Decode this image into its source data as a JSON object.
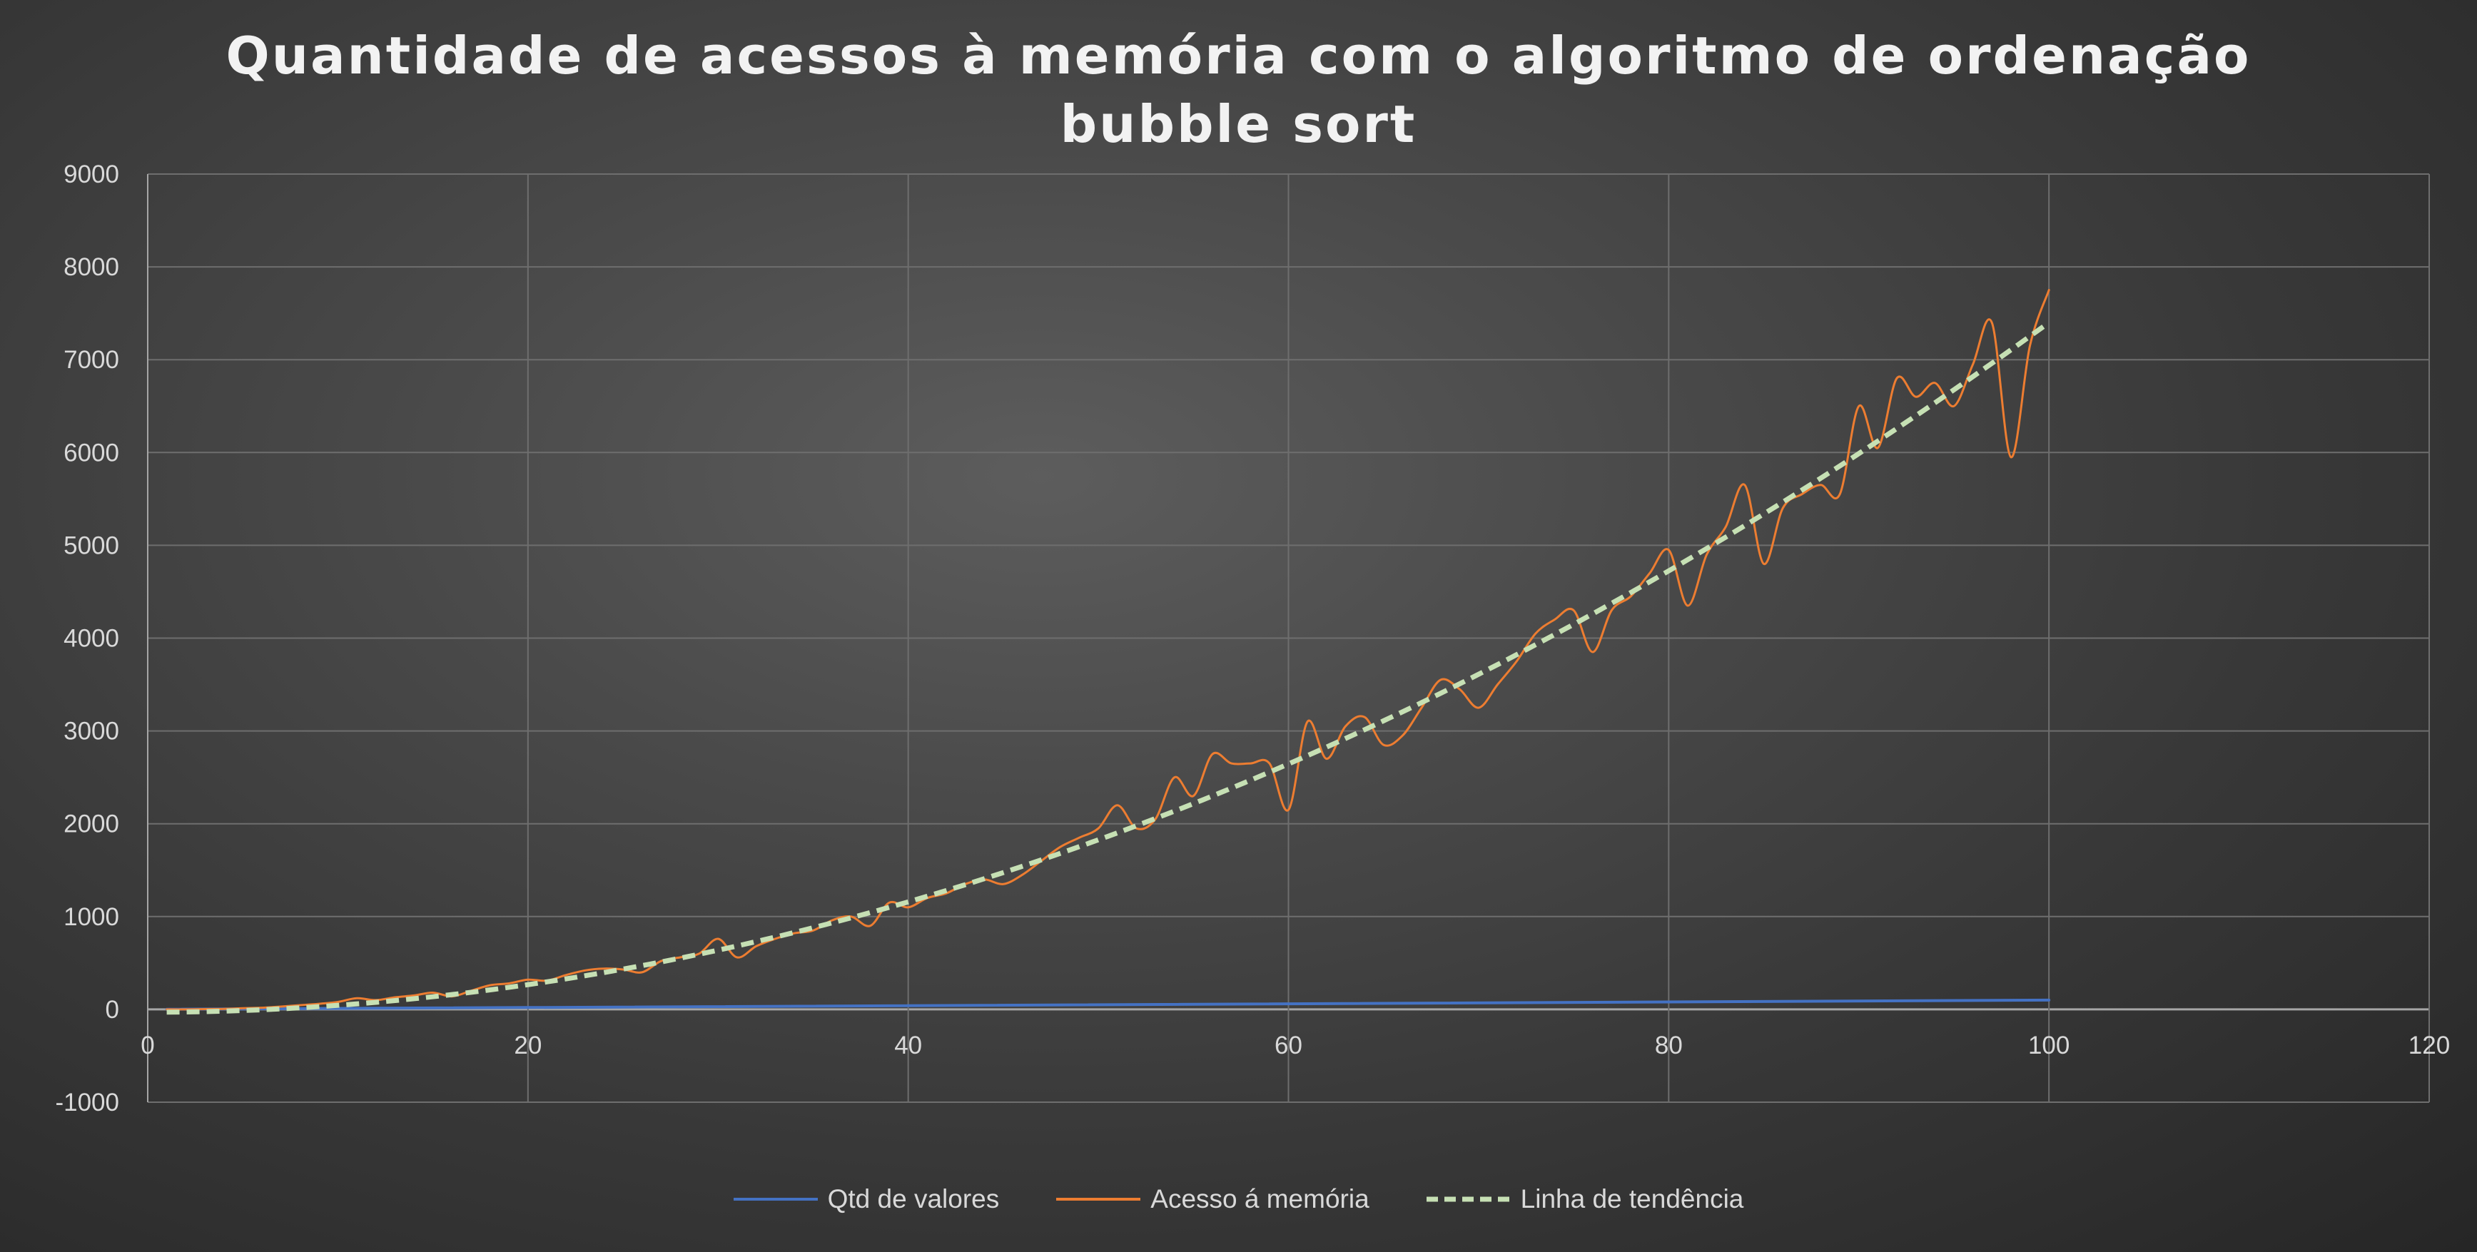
{
  "chart_data": {
    "type": "line",
    "title": "Quantidade de acessos à memória com o algoritmo de ordenação bubble sort",
    "title_lines": [
      "Quantidade de acessos à memória com o algoritmo de ordenação",
      "bubble sort"
    ],
    "xlabel": "",
    "ylabel": "",
    "xlim": [
      0,
      120
    ],
    "ylim": [
      -1000,
      9000
    ],
    "x_ticks": [
      0,
      20,
      40,
      60,
      80,
      100,
      120
    ],
    "y_ticks": [
      -1000,
      0,
      1000,
      2000,
      3000,
      4000,
      5000,
      6000,
      7000,
      8000,
      9000
    ],
    "x_tick_labels": [
      "0",
      "20",
      "40",
      "60",
      "80",
      "100",
      "120"
    ],
    "y_tick_labels": [
      "-1000",
      "0",
      "1000",
      "2000",
      "3000",
      "4000",
      "5000",
      "6000",
      "7000",
      "8000",
      "9000"
    ],
    "grid": true,
    "legend_position": "bottom",
    "series": [
      {
        "name": "Qtd de valores",
        "color": "#4472c4",
        "style": "solid",
        "x": [
          1,
          100
        ],
        "y": [
          1,
          100
        ]
      },
      {
        "name": "Acesso á memória",
        "color": "#ed7d31",
        "style": "solid",
        "x": [
          1,
          2,
          3,
          4,
          5,
          6,
          7,
          8,
          9,
          10,
          11,
          12,
          13,
          14,
          15,
          16,
          17,
          18,
          19,
          20,
          21,
          22,
          23,
          24,
          25,
          26,
          27,
          28,
          29,
          30,
          31,
          32,
          33,
          34,
          35,
          36,
          37,
          38,
          39,
          40,
          41,
          42,
          43,
          44,
          45,
          46,
          47,
          48,
          49,
          50,
          51,
          52,
          53,
          54,
          55,
          56,
          57,
          58,
          59,
          60,
          61,
          62,
          63,
          64,
          65,
          66,
          67,
          68,
          69,
          70,
          71,
          72,
          73,
          74,
          75,
          76,
          77,
          78,
          79,
          80,
          81,
          82,
          83,
          84,
          85,
          86,
          87,
          88,
          89,
          90,
          91,
          92,
          93,
          94,
          95,
          96,
          97,
          98,
          99,
          100
        ],
        "y": [
          0,
          0,
          3,
          5,
          12,
          18,
          30,
          45,
          60,
          80,
          120,
          100,
          130,
          150,
          180,
          140,
          200,
          260,
          280,
          320,
          310,
          370,
          420,
          440,
          430,
          400,
          520,
          560,
          600,
          760,
          560,
          680,
          760,
          820,
          850,
          960,
          1000,
          900,
          1150,
          1100,
          1200,
          1250,
          1350,
          1400,
          1350,
          1450,
          1600,
          1750,
          1850,
          1950,
          2200,
          1950,
          2050,
          2500,
          2300,
          2750,
          2650,
          2650,
          2650,
          2150,
          3100,
          2700,
          3050,
          3150,
          2850,
          2950,
          3250,
          3550,
          3450,
          3250,
          3500,
          3750,
          4050,
          4200,
          4300,
          3850,
          4300,
          4450,
          4700,
          4950,
          4350,
          4900,
          5200,
          5650,
          4800,
          5400,
          5550,
          5650,
          5550,
          6500,
          6050,
          6800,
          6600,
          6750,
          6500,
          6950,
          7400,
          5950,
          7150,
          7750
        ]
      },
      {
        "name": "Linha de tendência",
        "color": "#c6e0b4",
        "style": "dashed",
        "x": [
          1,
          100
        ],
        "y": [
          -30,
          7400
        ]
      }
    ]
  }
}
